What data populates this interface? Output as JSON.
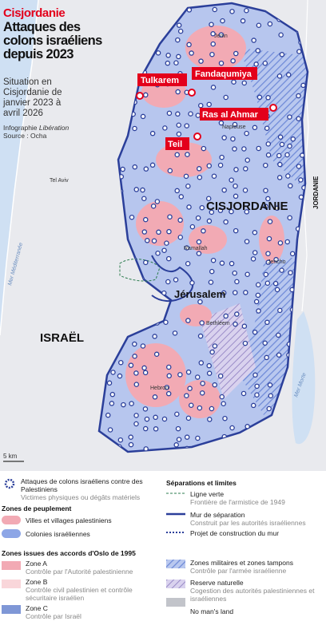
{
  "header": {
    "kicker": "Cisjordanie",
    "title": "Attaques des colons israéliens depuis 2023",
    "subtitle": "Situation en Cisjordanie de janvier 2023 à avril 2026",
    "credit": "Infographie",
    "credit_outlet": "Libération",
    "source": "Source : Ocha"
  },
  "map": {
    "highlighted_places": [
      "Tulkarem",
      "Fandaqumiya",
      "Ras al Ahmar",
      "Teil"
    ],
    "places": [
      "Jenin",
      "Naplouse",
      "Tel Aviv",
      "Ramallah",
      "Jericho",
      "Bethléem",
      "Hebron"
    ],
    "regions": {
      "west_bank": "CISJORDANIE",
      "israel": "ISRAËL",
      "jordan": "JORDANIE",
      "jerusalem": "Jérusalem"
    },
    "seas": {
      "mediterranean": "Mer Méditerranée",
      "dead_sea": "Mer Morte"
    },
    "scale": "5 km"
  },
  "legend": {
    "attacks": {
      "label": "Attaques de colons israéliens contre des Palestiniens",
      "note": "Victimes physiques ou dégâts matériels"
    },
    "settlement": {
      "title": "Zones de peuplement",
      "items": [
        "Villes et villages palestiniens",
        "Colonies israéliennes"
      ]
    },
    "oslo": {
      "title": "Zones issues des accords d'Oslo de 1995",
      "items": [
        {
          "label": "Zone A",
          "note": "Contrôle par l'Autorité palestinienne"
        },
        {
          "label": "Zone B",
          "note": "Contrôle civil palestinien et contrôle sécuritaire israélien"
        },
        {
          "label": "Zone C",
          "note": "Contrôle par Israël"
        }
      ]
    },
    "separations": {
      "title": "Séparations et limites",
      "items": [
        {
          "label": "Ligne verte",
          "note": "Frontière de l'armistice de 1949"
        },
        {
          "label": "Mur de séparation",
          "note": "Construit par les autorités israéliennes"
        },
        {
          "label": "Projet de construction du mur"
        }
      ]
    },
    "zones": {
      "items": [
        {
          "label": "Zones militaires et zones tampons",
          "note": "Contrôle par l'armée israélienne"
        },
        {
          "label": "Reserve naturelle",
          "note": "Cogestion des autorités palestiniennes et israéliennes"
        },
        {
          "label": "No man's land"
        }
      ]
    }
  }
}
